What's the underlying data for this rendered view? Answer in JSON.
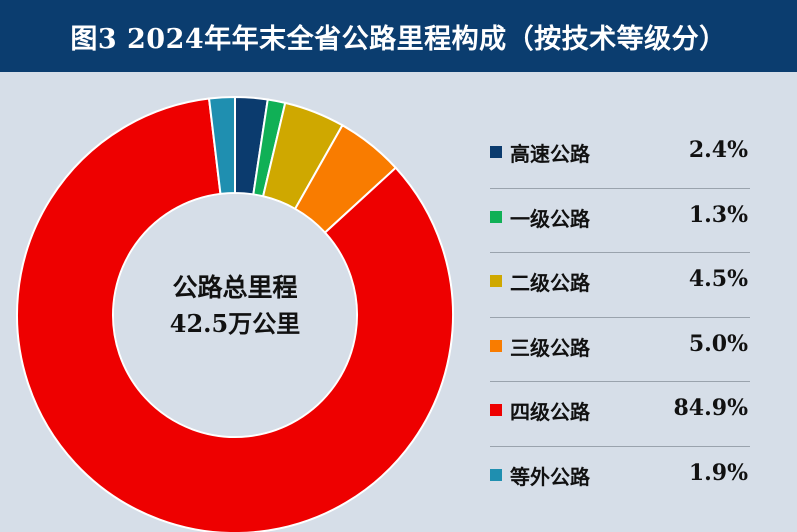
{
  "header": {
    "title": "图3  2024年年末全省公路里程构成（按技术等级分）"
  },
  "center": {
    "title": "公路总里程",
    "value": "42.5万公里"
  },
  "chart_data": {
    "type": "pie",
    "title": "图3  2024年年末全省公路里程构成（按技术等级分）",
    "donut": true,
    "legend_position": "right",
    "unit": "%",
    "categories": [
      "高速公路",
      "一级公路",
      "二级公路",
      "三级公路",
      "四级公路",
      "等外公路"
    ],
    "values": [
      2.4,
      1.3,
      4.5,
      5.0,
      84.9,
      1.9
    ],
    "labels": [
      "2.4%",
      "1.3%",
      "4.5%",
      "5.0%",
      "84.9%",
      "1.9%"
    ],
    "colors": [
      "#0b3b6e",
      "#10b056",
      "#cfa800",
      "#f97c00",
      "#ee0000",
      "#1f8fb0"
    ]
  }
}
